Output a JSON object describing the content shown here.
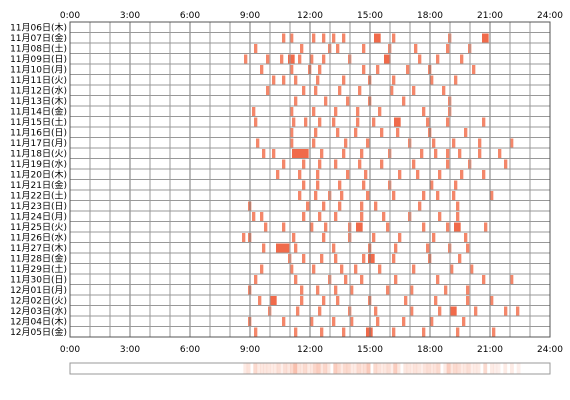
{
  "chart_data": {
    "type": "heatmap",
    "title": "",
    "x_ticks": [
      "0:00",
      "3:00",
      "6:00",
      "9:00",
      "12:00",
      "15:00",
      "18:00",
      "21:00",
      "24:00"
    ],
    "x_range_hours": [
      0,
      24
    ],
    "cell_minutes": 10,
    "grid": true,
    "color_levels": {
      "light": "#f7b5a0",
      "mid": "#f4876a",
      "dark": "#f06a4a"
    },
    "rows": [
      {
        "label": "11月06日(木)",
        "events": []
      },
      {
        "label": "11月07日(金)",
        "events": [
          [
            10.6,
            1
          ],
          [
            11.0,
            1
          ],
          [
            12.1,
            1
          ],
          [
            12.6,
            1
          ],
          [
            13.1,
            1
          ],
          [
            13.6,
            1
          ],
          [
            15.2,
            2
          ],
          [
            16.1,
            1
          ],
          [
            18.9,
            1
          ],
          [
            20.6,
            2
          ]
        ]
      },
      {
        "label": "11月08日(土)",
        "events": [
          [
            9.2,
            1
          ],
          [
            11.5,
            1
          ],
          [
            12.9,
            1
          ],
          [
            13.3,
            1
          ],
          [
            14.6,
            1
          ],
          [
            15.9,
            1
          ],
          [
            17.2,
            1
          ],
          [
            18.8,
            1
          ],
          [
            19.9,
            1
          ]
        ]
      },
      {
        "label": "11月09日(日)",
        "events": [
          [
            8.7,
            1
          ],
          [
            9.8,
            1
          ],
          [
            10.5,
            1
          ],
          [
            10.9,
            2
          ],
          [
            11.4,
            1
          ],
          [
            12.0,
            1
          ],
          [
            12.6,
            1
          ],
          [
            13.9,
            1
          ],
          [
            15.7,
            2
          ],
          [
            17.4,
            1
          ],
          [
            18.3,
            1
          ],
          [
            19.5,
            1
          ]
        ]
      },
      {
        "label": "11月10日(月)",
        "events": [
          [
            9.5,
            1
          ],
          [
            11.0,
            1
          ],
          [
            11.9,
            1
          ],
          [
            12.4,
            1
          ],
          [
            14.6,
            1
          ],
          [
            15.3,
            1
          ],
          [
            16.8,
            1
          ],
          [
            17.9,
            1
          ],
          [
            20.1,
            1
          ]
        ]
      },
      {
        "label": "11月11日(火)",
        "events": [
          [
            10.1,
            1
          ],
          [
            10.6,
            1
          ],
          [
            11.2,
            1
          ],
          [
            12.3,
            1
          ],
          [
            13.6,
            1
          ],
          [
            14.9,
            1
          ],
          [
            16.1,
            1
          ],
          [
            18.0,
            1
          ],
          [
            19.2,
            1
          ]
        ]
      },
      {
        "label": "11月12日(水)",
        "events": [
          [
            9.8,
            1
          ],
          [
            11.6,
            1
          ],
          [
            12.2,
            1
          ],
          [
            13.4,
            1
          ],
          [
            14.4,
            1
          ],
          [
            16.0,
            1
          ],
          [
            17.1,
            1
          ],
          [
            18.6,
            1
          ]
        ]
      },
      {
        "label": "11月13日(木)",
        "events": [
          [
            11.2,
            1
          ],
          [
            12.7,
            1
          ],
          [
            13.8,
            1
          ],
          [
            14.9,
            1
          ],
          [
            16.6,
            1
          ],
          [
            18.9,
            1
          ]
        ]
      },
      {
        "label": "11月14日(金)",
        "events": [
          [
            9.1,
            1
          ],
          [
            11.0,
            1
          ],
          [
            12.1,
            1
          ],
          [
            13.2,
            1
          ],
          [
            14.3,
            1
          ],
          [
            15.4,
            1
          ],
          [
            17.6,
            1
          ],
          [
            18.9,
            1
          ]
        ]
      },
      {
        "label": "11月15日(土)",
        "events": [
          [
            9.2,
            1
          ],
          [
            11.1,
            1
          ],
          [
            11.7,
            1
          ],
          [
            12.4,
            1
          ],
          [
            13.1,
            1
          ],
          [
            14.3,
            1
          ],
          [
            15.1,
            1
          ],
          [
            16.2,
            2
          ],
          [
            17.8,
            1
          ],
          [
            18.8,
            1
          ],
          [
            20.6,
            1
          ]
        ]
      },
      {
        "label": "11月16日(日)",
        "events": [
          [
            11.0,
            1
          ],
          [
            12.2,
            1
          ],
          [
            13.3,
            1
          ],
          [
            14.2,
            1
          ],
          [
            15.5,
            1
          ],
          [
            16.3,
            1
          ],
          [
            17.9,
            1
          ],
          [
            19.7,
            1
          ]
        ]
      },
      {
        "label": "11月17日(月)",
        "events": [
          [
            9.3,
            1
          ],
          [
            11.0,
            1
          ],
          [
            12.1,
            1
          ],
          [
            13.7,
            1
          ],
          [
            14.8,
            1
          ],
          [
            16.9,
            1
          ],
          [
            18.1,
            1
          ],
          [
            19.1,
            1
          ],
          [
            20.4,
            1
          ],
          [
            22.0,
            1
          ]
        ]
      },
      {
        "label": "11月18日(火)",
        "events": [
          [
            9.6,
            1
          ],
          [
            10.1,
            1
          ],
          [
            11.1,
            5
          ],
          [
            12.5,
            1
          ],
          [
            13.6,
            1
          ],
          [
            14.5,
            1
          ],
          [
            15.9,
            1
          ],
          [
            17.5,
            1
          ],
          [
            18.2,
            1
          ],
          [
            18.8,
            1
          ],
          [
            19.4,
            1
          ],
          [
            20.4,
            1
          ],
          [
            21.4,
            1
          ]
        ]
      },
      {
        "label": "11月19日(水)",
        "events": [
          [
            10.6,
            1
          ],
          [
            11.6,
            1
          ],
          [
            12.4,
            1
          ],
          [
            13.2,
            1
          ],
          [
            14.4,
            1
          ],
          [
            15.5,
            1
          ],
          [
            17.1,
            1
          ],
          [
            18.8,
            1
          ],
          [
            19.9,
            1
          ],
          [
            21.7,
            1
          ]
        ]
      },
      {
        "label": "11月20日(木)",
        "events": [
          [
            10.3,
            1
          ],
          [
            11.4,
            1
          ],
          [
            12.3,
            1
          ],
          [
            13.8,
            1
          ],
          [
            14.7,
            1
          ],
          [
            16.4,
            1
          ],
          [
            17.3,
            1
          ],
          [
            18.4,
            1
          ],
          [
            19.5,
            1
          ],
          [
            20.6,
            1
          ]
        ]
      },
      {
        "label": "11月21日(金)",
        "events": [
          [
            11.6,
            1
          ],
          [
            12.3,
            1
          ],
          [
            13.4,
            1
          ],
          [
            14.6,
            1
          ],
          [
            15.9,
            1
          ],
          [
            18.0,
            1
          ],
          [
            19.2,
            1
          ]
        ]
      },
      {
        "label": "11月22日(土)",
        "events": [
          [
            11.4,
            1
          ],
          [
            12.2,
            1
          ],
          [
            12.9,
            1
          ],
          [
            13.5,
            1
          ],
          [
            14.8,
            1
          ],
          [
            16.1,
            1
          ],
          [
            17.6,
            1
          ],
          [
            18.3,
            1
          ],
          [
            19.1,
            1
          ],
          [
            21.0,
            1
          ]
        ]
      },
      {
        "label": "11月23日(日)",
        "events": [
          [
            8.9,
            1
          ],
          [
            11.8,
            1
          ],
          [
            12.6,
            1
          ],
          [
            13.4,
            1
          ],
          [
            14.5,
            1
          ],
          [
            15.2,
            1
          ],
          [
            17.4,
            1
          ],
          [
            19.3,
            1
          ]
        ]
      },
      {
        "label": "11月24日(月)",
        "events": [
          [
            9.1,
            1
          ],
          [
            9.5,
            1
          ],
          [
            11.6,
            1
          ],
          [
            12.4,
            1
          ],
          [
            13.2,
            1
          ],
          [
            14.5,
            1
          ],
          [
            15.6,
            1
          ],
          [
            16.9,
            1
          ],
          [
            18.4,
            1
          ],
          [
            19.3,
            1
          ]
        ]
      },
      {
        "label": "11月25日(火)",
        "events": [
          [
            9.7,
            1
          ],
          [
            10.6,
            1
          ],
          [
            12.0,
            1
          ],
          [
            12.7,
            1
          ],
          [
            13.9,
            1
          ],
          [
            14.3,
            2
          ],
          [
            15.8,
            1
          ],
          [
            17.6,
            1
          ],
          [
            18.8,
            1
          ],
          [
            19.2,
            2
          ],
          [
            20.7,
            1
          ]
        ]
      },
      {
        "label": "11月26日(水)",
        "events": [
          [
            8.6,
            1
          ],
          [
            8.9,
            1
          ],
          [
            11.1,
            1
          ],
          [
            12.6,
            1
          ],
          [
            13.9,
            1
          ],
          [
            15.1,
            1
          ],
          [
            16.4,
            1
          ],
          [
            18.1,
            1
          ],
          [
            19.7,
            1
          ]
        ]
      },
      {
        "label": "11月27日(木)",
        "events": [
          [
            9.6,
            1
          ],
          [
            10.3,
            4
          ],
          [
            11.2,
            1
          ],
          [
            13.1,
            1
          ],
          [
            14.9,
            1
          ],
          [
            16.2,
            1
          ],
          [
            17.8,
            1
          ],
          [
            18.9,
            1
          ],
          [
            19.8,
            1
          ]
        ]
      },
      {
        "label": "11月28日(金)",
        "events": [
          [
            10.9,
            1
          ],
          [
            11.6,
            1
          ],
          [
            12.5,
            1
          ],
          [
            13.2,
            1
          ],
          [
            14.6,
            1
          ],
          [
            14.9,
            2
          ],
          [
            16.1,
            1
          ],
          [
            17.9,
            1
          ],
          [
            19.4,
            1
          ]
        ]
      },
      {
        "label": "11月29日(土)",
        "events": [
          [
            9.5,
            1
          ],
          [
            11.0,
            1
          ],
          [
            12.1,
            1
          ],
          [
            13.5,
            1
          ],
          [
            14.2,
            1
          ],
          [
            15.4,
            1
          ],
          [
            17.1,
            1
          ],
          [
            19.0,
            1
          ],
          [
            20.0,
            1
          ]
        ]
      },
      {
        "label": "11月30日(日)",
        "events": [
          [
            9.2,
            1
          ],
          [
            11.2,
            1
          ],
          [
            12.9,
            1
          ],
          [
            13.7,
            1
          ],
          [
            14.5,
            1
          ],
          [
            16.2,
            1
          ],
          [
            18.3,
            1
          ],
          [
            20.6,
            1
          ],
          [
            22.0,
            1
          ]
        ]
      },
      {
        "label": "12月01日(月)",
        "events": [
          [
            8.9,
            1
          ],
          [
            11.5,
            1
          ],
          [
            12.3,
            1
          ],
          [
            13.2,
            1
          ],
          [
            14.0,
            1
          ],
          [
            15.8,
            1
          ],
          [
            17.0,
            1
          ],
          [
            18.7,
            1
          ],
          [
            19.8,
            1
          ]
        ]
      },
      {
        "label": "12月02日(火)",
        "events": [
          [
            9.4,
            1
          ],
          [
            10.0,
            2
          ],
          [
            11.5,
            1
          ],
          [
            12.6,
            1
          ],
          [
            13.3,
            1
          ],
          [
            14.9,
            1
          ],
          [
            16.7,
            1
          ],
          [
            18.2,
            1
          ],
          [
            19.8,
            1
          ],
          [
            21.0,
            1
          ]
        ]
      },
      {
        "label": "12月03日(水)",
        "events": [
          [
            9.9,
            1
          ],
          [
            11.3,
            1
          ],
          [
            12.4,
            1
          ],
          [
            13.9,
            1
          ],
          [
            15.2,
            1
          ],
          [
            17.0,
            1
          ],
          [
            18.4,
            1
          ],
          [
            19.0,
            2
          ],
          [
            20.2,
            1
          ],
          [
            21.7,
            1
          ],
          [
            22.3,
            1
          ]
        ]
      },
      {
        "label": "12月04日(木)",
        "events": [
          [
            8.9,
            1
          ],
          [
            10.6,
            1
          ],
          [
            12.0,
            1
          ],
          [
            13.1,
            1
          ],
          [
            14.0,
            1
          ],
          [
            15.3,
            1
          ],
          [
            16.6,
            1
          ],
          [
            18.0,
            1
          ],
          [
            19.6,
            1
          ]
        ]
      },
      {
        "label": "12月05日(金)",
        "events": [
          [
            9.2,
            1
          ],
          [
            11.2,
            1
          ],
          [
            12.5,
            1
          ],
          [
            13.6,
            1
          ],
          [
            14.8,
            2
          ],
          [
            16.1,
            1
          ],
          [
            17.6,
            1
          ],
          [
            19.3,
            1
          ],
          [
            21.1,
            1
          ]
        ]
      }
    ]
  }
}
